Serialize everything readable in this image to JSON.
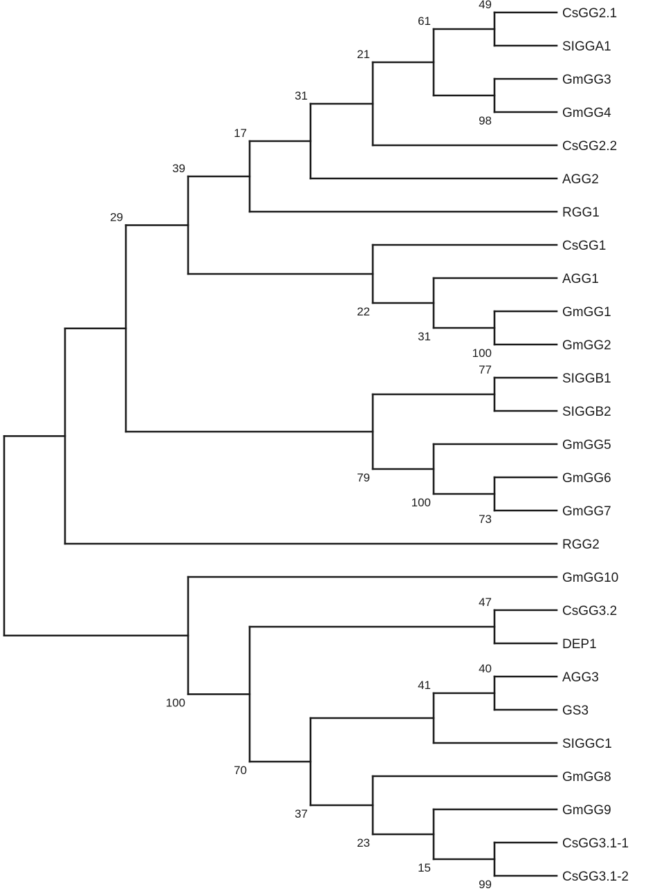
{
  "tree": {
    "leaves": [
      "CsGG2.1",
      "SIGGA1",
      "GmGG3",
      "GmGG4",
      "CsGG2.2",
      "AGG2",
      "RGG1",
      "CsGG1",
      "AGG1",
      "GmGG1",
      "GmGG2",
      "SIGGB1",
      "SIGGB2",
      "GmGG5",
      "GmGG6",
      "GmGG7",
      "RGG2",
      "GmGG10",
      "CsGG3.2",
      "DEP1",
      "AGG3",
      "GS3",
      "SIGGC1",
      "GmGG8",
      "GmGG9",
      "CsGG3.1-1",
      "CsGG3.1-2"
    ],
    "nodes": [
      {
        "id": "n1",
        "children": [
          "CsGG2.1",
          "SIGGA1"
        ],
        "support": "49",
        "label_pos": "above"
      },
      {
        "id": "n2",
        "children": [
          "GmGG3",
          "GmGG4"
        ],
        "support": "98",
        "label_pos": "below"
      },
      {
        "id": "n3",
        "children": [
          "n1",
          "n2"
        ],
        "support": "61",
        "label_pos": "above"
      },
      {
        "id": "n4",
        "children": [
          "n3",
          "CsGG2.2"
        ],
        "support": "21",
        "label_pos": "above"
      },
      {
        "id": "n5",
        "children": [
          "n4",
          "AGG2"
        ],
        "support": "31",
        "label_pos": "above"
      },
      {
        "id": "n6",
        "children": [
          "n5",
          "RGG1"
        ],
        "support": "17",
        "label_pos": "above"
      },
      {
        "id": "n7",
        "children": [
          "GmGG1",
          "GmGG2"
        ],
        "support": "100",
        "label_pos": "below"
      },
      {
        "id": "n8",
        "children": [
          "AGG1",
          "n7"
        ],
        "support": "31",
        "label_pos": "below"
      },
      {
        "id": "n9",
        "children": [
          "CsGG1",
          "n8"
        ],
        "support": "22",
        "label_pos": "below"
      },
      {
        "id": "n10",
        "children": [
          "n6",
          "n9"
        ],
        "support": "39",
        "label_pos": "above"
      },
      {
        "id": "n11",
        "children": [
          "SIGGB1",
          "SIGGB2"
        ],
        "support": "77",
        "label_pos": "above"
      },
      {
        "id": "n12",
        "children": [
          "GmGG6",
          "GmGG7"
        ],
        "support": "73",
        "label_pos": "below"
      },
      {
        "id": "n13",
        "children": [
          "GmGG5",
          "n12"
        ],
        "support": "100",
        "label_pos": "below"
      },
      {
        "id": "n14",
        "children": [
          "n11",
          "n13"
        ],
        "support": "79",
        "label_pos": "below"
      },
      {
        "id": "n15",
        "children": [
          "n10",
          "n14"
        ],
        "support": "29",
        "label_pos": "above"
      },
      {
        "id": "n16",
        "children": [
          "n15",
          "RGG2"
        ],
        "support": "",
        "label_pos": "above"
      },
      {
        "id": "n17",
        "children": [
          "CsGG3.2",
          "DEP1"
        ],
        "support": "47",
        "label_pos": "above"
      },
      {
        "id": "n18",
        "children": [
          "AGG3",
          "GS3"
        ],
        "support": "40",
        "label_pos": "above"
      },
      {
        "id": "n19",
        "children": [
          "n18",
          "SIGGC1"
        ],
        "support": "41",
        "label_pos": "above"
      },
      {
        "id": "n20",
        "children": [
          "CsGG3.1-1",
          "CsGG3.1-2"
        ],
        "support": "99",
        "label_pos": "below"
      },
      {
        "id": "n21",
        "children": [
          "GmGG9",
          "n20"
        ],
        "support": "15",
        "label_pos": "below"
      },
      {
        "id": "n22",
        "children": [
          "GmGG8",
          "n21"
        ],
        "support": "23",
        "label_pos": "below"
      },
      {
        "id": "n23",
        "children": [
          "n19",
          "n22"
        ],
        "support": "37",
        "label_pos": "below"
      },
      {
        "id": "n24",
        "children": [
          "n17",
          "n23"
        ],
        "support": "70",
        "label_pos": "below"
      },
      {
        "id": "n25",
        "children": [
          "GmGG10",
          "n24"
        ],
        "support": "100",
        "label_pos": "below"
      },
      {
        "id": "root",
        "children": [
          "n16",
          "n25"
        ],
        "support": "",
        "label_pos": "above"
      }
    ]
  }
}
